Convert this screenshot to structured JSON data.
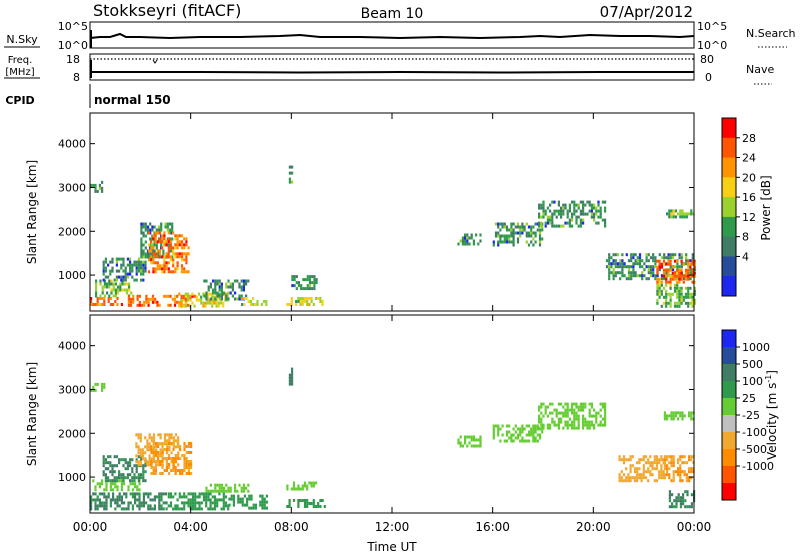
{
  "header": {
    "title": "Stokkseyri (fitACF)",
    "beam": "Beam 10",
    "date": "07/Apr/2012"
  },
  "summary_panels": {
    "nsky": {
      "label": "N.Sky",
      "ticks": [
        "10^5",
        "10^0"
      ]
    },
    "nsearch": {
      "label": "N.Search",
      "ticks": [
        "10^5",
        "10^0"
      ]
    },
    "freq": {
      "label_line1": "Freq.",
      "label_line2": "[MHz]",
      "ticks": [
        "18",
        "8"
      ]
    },
    "nave": {
      "label": "Nave",
      "ticks": [
        "80",
        "0"
      ]
    },
    "cpid": {
      "label": "CPID",
      "value": "normal 150"
    }
  },
  "chart_data": [
    {
      "type": "heatmap",
      "panel": "power",
      "ylabel": "Slant Range [km]",
      "yticks": [
        "4000",
        "3000",
        "2000",
        "1000"
      ],
      "ylim": [
        180,
        4700
      ],
      "xlim": [
        0,
        24
      ],
      "xticks": [
        "00:00",
        "04:00",
        "08:00",
        "12:00",
        "16:00",
        "20:00",
        "00:00"
      ],
      "colorbar": {
        "label": "Power [dB]",
        "ticks": [
          "28",
          "24",
          "20",
          "16",
          "12",
          "8",
          "4"
        ],
        "colors": [
          "#ff0000",
          "#ff5500",
          "#ff9400",
          "#f7d016",
          "#9bd12e",
          "#2f9a4c",
          "#3f7d64",
          "#274d9a",
          "#1d27f0"
        ]
      },
      "series": [
        {
          "t": [
            0.0,
            0.5
          ],
          "r": [
            2900,
            3150
          ],
          "value": 8
        },
        {
          "t": [
            0.0,
            1.3
          ],
          "r": [
            300,
            500
          ],
          "value": 24
        },
        {
          "t": [
            0.2,
            1.6
          ],
          "r": [
            500,
            900
          ],
          "value": 12
        },
        {
          "t": [
            0.5,
            2.2
          ],
          "r": [
            900,
            1400
          ],
          "value": 8
        },
        {
          "t": [
            1.5,
            4.2
          ],
          "r": [
            300,
            550
          ],
          "value": 24
        },
        {
          "t": [
            2.0,
            3.3
          ],
          "r": [
            1400,
            2200
          ],
          "value": 8
        },
        {
          "t": [
            2.3,
            3.9
          ],
          "r": [
            1100,
            2000
          ],
          "value": 24
        },
        {
          "t": [
            3.5,
            5.5
          ],
          "r": [
            300,
            600
          ],
          "value": 16
        },
        {
          "t": [
            4.5,
            6.3
          ],
          "r": [
            450,
            900
          ],
          "value": 8
        },
        {
          "t": [
            6.0,
            7.0
          ],
          "r": [
            300,
            500
          ],
          "value": 16
        },
        {
          "t": [
            7.8,
            9.2
          ],
          "r": [
            300,
            500
          ],
          "value": 16
        },
        {
          "t": [
            8.0,
            9.0
          ],
          "r": [
            700,
            1000
          ],
          "value": 8
        },
        {
          "t": [
            7.9,
            8.0
          ],
          "r": [
            3100,
            3500
          ],
          "value": 8
        },
        {
          "t": [
            14.6,
            15.5
          ],
          "r": [
            1700,
            1950
          ],
          "value": 8
        },
        {
          "t": [
            16.0,
            18.0
          ],
          "r": [
            1700,
            2200
          ],
          "value": 8
        },
        {
          "t": [
            17.8,
            20.5
          ],
          "r": [
            2100,
            2700
          ],
          "value": 8
        },
        {
          "t": [
            22.8,
            24.0
          ],
          "r": [
            2300,
            2500
          ],
          "value": 12
        },
        {
          "t": [
            20.5,
            24.0
          ],
          "r": [
            900,
            1500
          ],
          "value": 8
        },
        {
          "t": [
            22.5,
            24.0
          ],
          "r": [
            850,
            1350
          ],
          "value": 24
        },
        {
          "t": [
            22.5,
            24.0
          ],
          "r": [
            300,
            800
          ],
          "value": 12
        }
      ]
    },
    {
      "type": "heatmap",
      "panel": "velocity",
      "ylabel": "Slant Range [km]",
      "yticks": [
        "4000",
        "3000",
        "2000",
        "1000"
      ],
      "ylim": [
        180,
        4700
      ],
      "xlim": [
        0,
        24
      ],
      "xticks": [
        "00:00",
        "04:00",
        "08:00",
        "12:00",
        "16:00",
        "20:00",
        "00:00"
      ],
      "xlabel": "Time UT",
      "colorbar": {
        "label": "Velocity [m s",
        "label_sup": "-1",
        "label_tail": "]",
        "ticks": [
          "1000",
          "500",
          "100",
          "25",
          "-25",
          "-100",
          "-500",
          "-1000"
        ],
        "colors": [
          "#1d27f0",
          "#274d9a",
          "#3f7d64",
          "#2f9a4c",
          "#66cc33",
          "#c0c0c0",
          "#f0a830",
          "#ff8c00",
          "#ff5500",
          "#ff0000"
        ]
      },
      "series": [
        {
          "t": [
            0.0,
            0.6
          ],
          "r": [
            2950,
            3150
          ],
          "value": 0
        },
        {
          "t": [
            0.0,
            2.0
          ],
          "r": [
            700,
            950
          ],
          "value": 0
        },
        {
          "t": [
            0.0,
            3.0
          ],
          "r": [
            300,
            650
          ],
          "value": 120
        },
        {
          "t": [
            0.5,
            2.2
          ],
          "r": [
            900,
            1500
          ],
          "value": 120
        },
        {
          "t": [
            1.8,
            3.5
          ],
          "r": [
            1300,
            2000
          ],
          "value": -200
        },
        {
          "t": [
            2.4,
            4.0
          ],
          "r": [
            1100,
            1800
          ],
          "value": -500
        },
        {
          "t": [
            3.0,
            5.5
          ],
          "r": [
            300,
            650
          ],
          "value": 60
        },
        {
          "t": [
            4.5,
            6.3
          ],
          "r": [
            700,
            850
          ],
          "value": 0
        },
        {
          "t": [
            5.5,
            7.0
          ],
          "r": [
            300,
            600
          ],
          "value": 60
        },
        {
          "t": [
            7.8,
            9.3
          ],
          "r": [
            300,
            500
          ],
          "value": 60
        },
        {
          "t": [
            7.8,
            9.0
          ],
          "r": [
            700,
            900
          ],
          "value": 0
        },
        {
          "t": [
            7.9,
            8.0
          ],
          "r": [
            3100,
            3500
          ],
          "value": 200
        },
        {
          "t": [
            14.6,
            15.5
          ],
          "r": [
            1700,
            1950
          ],
          "value": 0
        },
        {
          "t": [
            16.0,
            18.0
          ],
          "r": [
            1800,
            2200
          ],
          "value": 0
        },
        {
          "t": [
            17.8,
            20.5
          ],
          "r": [
            2100,
            2700
          ],
          "value": 0
        },
        {
          "t": [
            22.8,
            24.0
          ],
          "r": [
            2300,
            2500
          ],
          "value": 0
        },
        {
          "t": [
            21.0,
            22.8
          ],
          "r": [
            900,
            1500
          ],
          "value": -200
        },
        {
          "t": [
            22.8,
            24.0
          ],
          "r": [
            900,
            1500
          ],
          "value": -500
        },
        {
          "t": [
            23.0,
            24.0
          ],
          "r": [
            300,
            700
          ],
          "value": 120
        }
      ]
    }
  ]
}
